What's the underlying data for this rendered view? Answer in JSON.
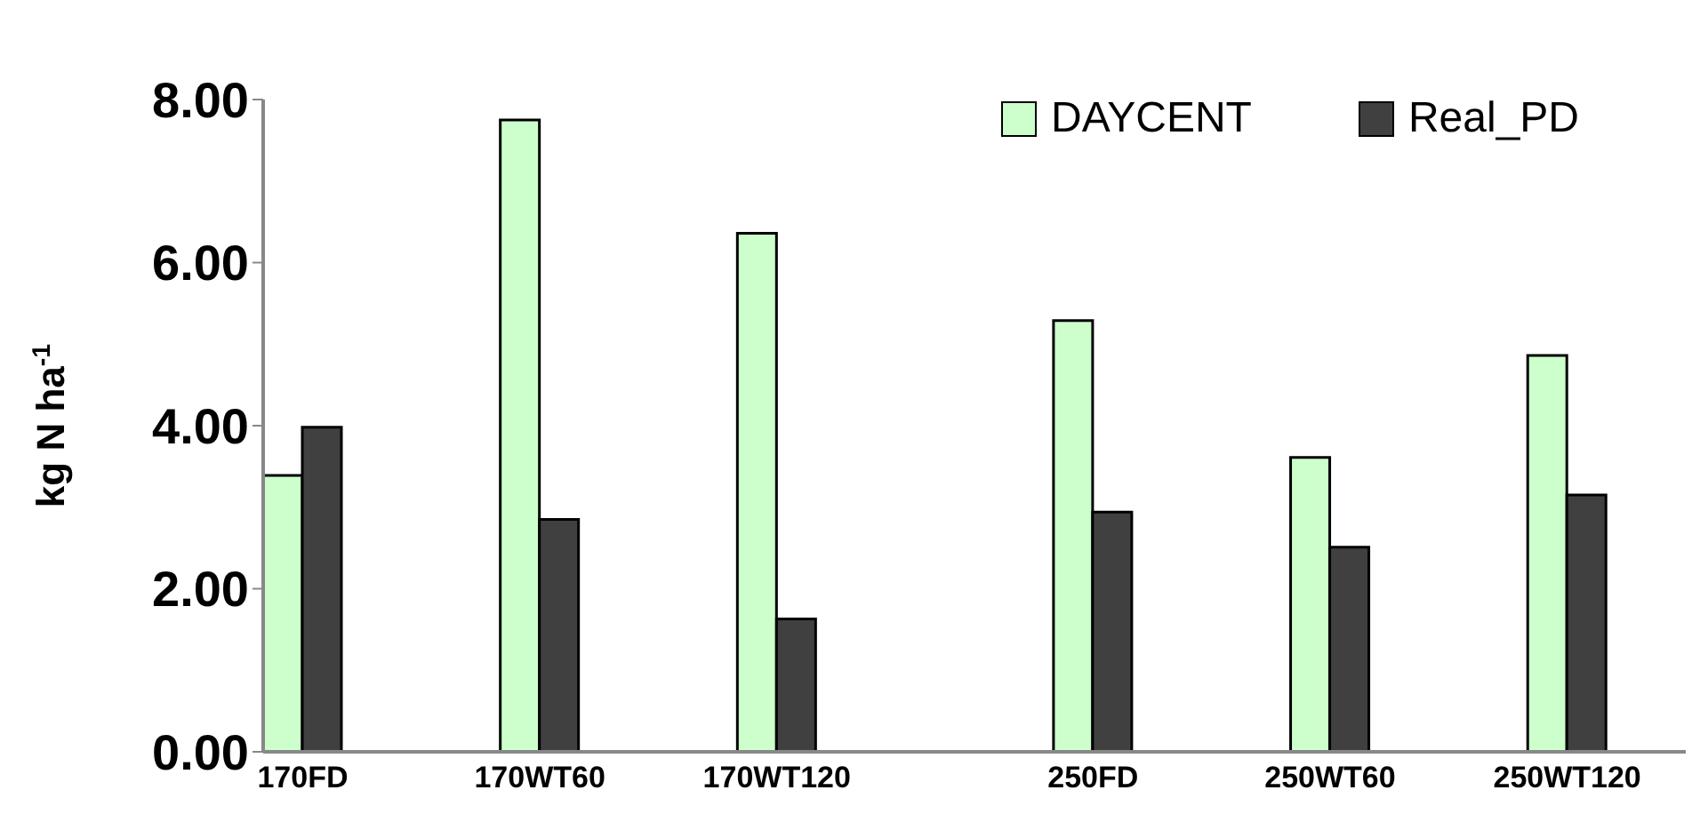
{
  "chart_data": {
    "type": "bar",
    "ylabel": "kg N ha$^{-1}$",
    "categories": [
      "170FD",
      null,
      null,
      "170WT60",
      null,
      null,
      "170WT120",
      null,
      null,
      null,
      "250FD",
      null,
      null,
      "250WT60",
      null,
      null,
      "250WT120",
      null
    ],
    "series": [
      {
        "name": "DAYCENT",
        "color": "#ccffcc",
        "values": [
          3.39,
          null,
          null,
          7.75,
          null,
          null,
          6.36,
          null,
          null,
          null,
          5.29,
          null,
          null,
          3.61,
          null,
          null,
          4.86,
          null
        ]
      },
      {
        "name": "Real_PD",
        "color": "#404040",
        "values": [
          3.98,
          null,
          null,
          2.85,
          null,
          null,
          1.63,
          null,
          null,
          null,
          2.94,
          null,
          null,
          2.51,
          null,
          null,
          3.15,
          null
        ]
      }
    ],
    "ylim": [
      0,
      8
    ],
    "yticks": [
      {
        "value": 0,
        "label": "0.00"
      },
      {
        "value": 2,
        "label": "2.00"
      },
      {
        "value": 4,
        "label": "4.00"
      },
      {
        "value": 6,
        "label": "6.00"
      },
      {
        "value": 8,
        "label": "8.00"
      }
    ],
    "grid": false,
    "legend": "top right"
  }
}
